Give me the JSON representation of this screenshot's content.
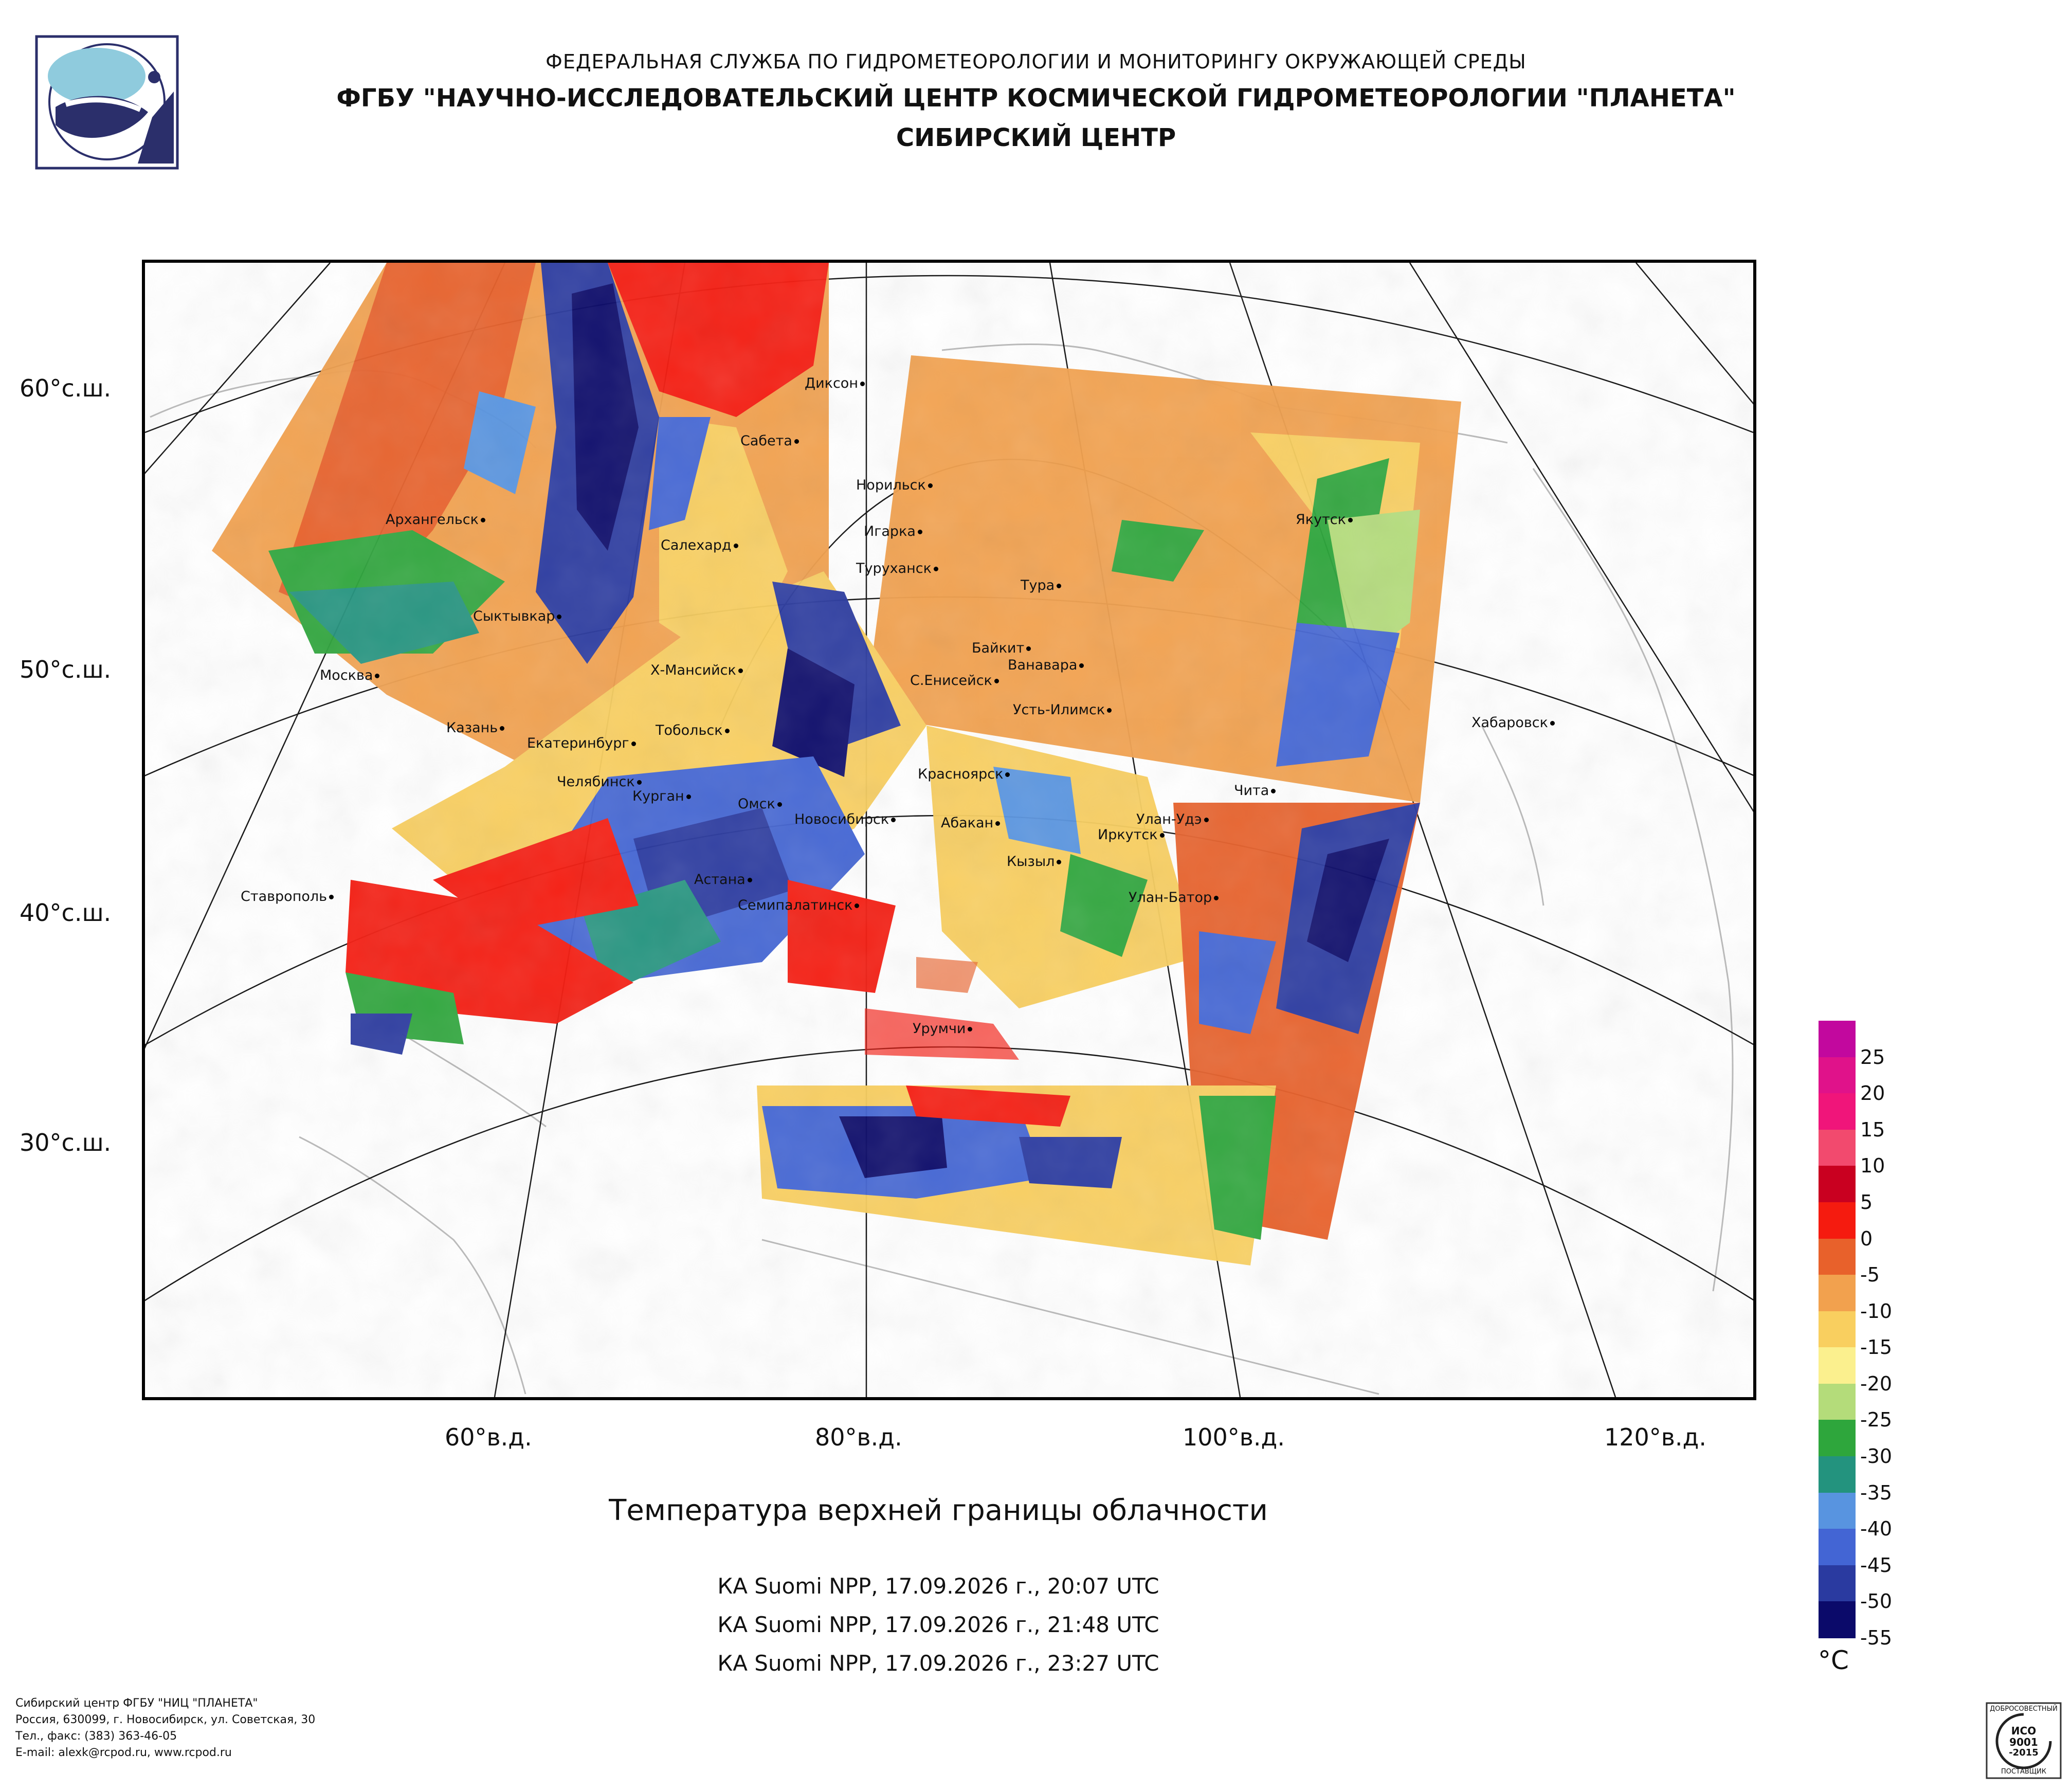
{
  "header": {
    "line1": "ФЕДЕРАЛЬНАЯ СЛУЖБА ПО ГИДРОМЕТЕОРОЛОГИИ И МОНИТОРИНГУ ОКРУЖАЮЩЕЙ СРЕДЫ",
    "line2": "ФГБУ \"НАУЧНО-ИССЛЕДОВАТЕЛЬСКИЙ ЦЕНТР КОСМИЧЕСКОЙ ГИДРОМЕТЕОРОЛОГИИ \"ПЛАНЕТА\"",
    "line3": "СИБИРСКИЙ ЦЕНТР"
  },
  "map": {
    "latitude_labels": [
      "60°с.ш.",
      "50°с.ш.",
      "40°с.ш.",
      "30°с.ш."
    ],
    "longitude_labels": [
      "60°в.д.",
      "80°в.д.",
      "100°в.д.",
      "120°в.д."
    ],
    "cities": [
      "Диксон",
      "Сабета",
      "Норильск",
      "Архангельск",
      "Игарка",
      "Салехард",
      "Туруханск",
      "Якутск",
      "Тура",
      "Сыктывкар",
      "Байкит",
      "Ванавара",
      "Москва",
      "Х-Мансийск",
      "С.Енисейск",
      "Усть-Илимск",
      "Хабаровск",
      "Казань",
      "Тобольск",
      "Екатеринбург",
      "Красноярск",
      "Челябинск",
      "Курган",
      "Чита",
      "Омск",
      "Новосибирск",
      "Улан-Удэ",
      "Абакан",
      "Иркутск",
      "Кызыл",
      "Астана",
      "Ставрополь",
      "Улан-Батор",
      "Семипалатинск",
      "Урумчи"
    ]
  },
  "title": "Температура верхней границы облачности",
  "passes": [
    "КА Suomi NPP, 17.09.2026 г., 20:07 UTC",
    "КА Suomi NPP, 17.09.2026 г., 21:48 UTC",
    "КА Suomi NPP, 17.09.2026 г., 23:27 UTC"
  ],
  "legend": {
    "unit": "°C",
    "labels": [
      "25",
      "20",
      "15",
      "10",
      "5",
      "0",
      "-5",
      "-10",
      "-15",
      "-20",
      "-25",
      "-30",
      "-35",
      "-40",
      "-45",
      "-50",
      "-55"
    ],
    "colors": [
      "#c2089e",
      "#e0128a",
      "#f0157a",
      "#f24a6e",
      "#c90020",
      "#f51b0f",
      "#e8612b",
      "#f2a14e",
      "#f9cf5f",
      "#fbf08e",
      "#b4dc7a",
      "#2ea63c",
      "#23937e",
      "#5894e0",
      "#4365d4",
      "#2a3aa0",
      "#0b0a6a"
    ]
  },
  "footer": {
    "line1": "Сибирский центр ФГБУ \"НИЦ \"ПЛАНЕТА\"",
    "line2": "Россия, 630099, г. Новосибирск, ул. Советская, 30",
    "line3": "Тел., факс: (383) 363-46-05",
    "line4": "E-mail: alexk@rcpod.ru, www.rcpod.ru"
  },
  "certificate": {
    "top": "ДОБРОСОВЕСТНЫЙ",
    "line1": "ИСО",
    "line2": "9001",
    "line3": "-2015",
    "bottom": "ПОСТАВЩИК"
  }
}
